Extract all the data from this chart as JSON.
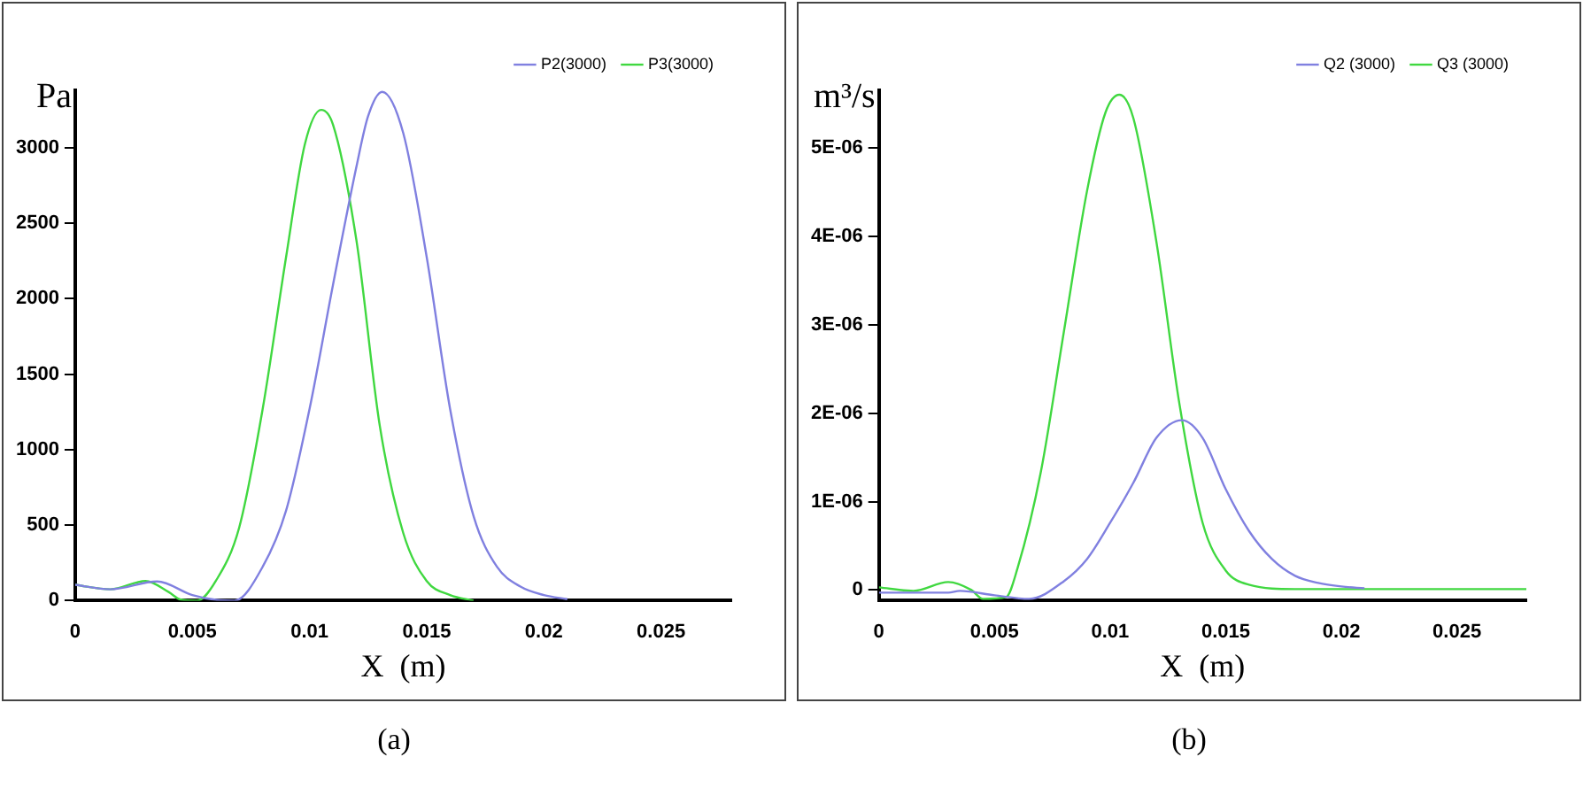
{
  "chart_data": [
    {
      "type": "line",
      "ylabel": "Pa",
      "xlabel": "X  (m)",
      "annotations": [
        "(a)"
      ],
      "legend": "top right",
      "marker": "none",
      "line_style": "solid",
      "grid": false,
      "xlim": [
        0,
        0.028
      ],
      "xticks": [
        0,
        0.005,
        0.01,
        0.015,
        0.02,
        0.025
      ],
      "ylim": [
        0,
        3380
      ],
      "yticks": [
        0,
        500,
        1000,
        1500,
        2000,
        2500,
        3000
      ],
      "series": [
        {
          "name": "P2(3000)",
          "color": "#8080e0",
          "x": [
            0,
            0.0015,
            0.0035,
            0.005,
            0.006,
            0.0068,
            0.008,
            0.009,
            0.01,
            0.011,
            0.012,
            0.0125,
            0.0131,
            0.014,
            0.015,
            0.016,
            0.017,
            0.018,
            0.019,
            0.02,
            0.021
          ],
          "values": [
            105,
            75,
            127,
            37,
            5,
            0,
            224,
            597,
            1269,
            2090,
            2873,
            3209,
            3370,
            3097,
            2276,
            1269,
            560,
            224,
            93,
            37,
            10
          ]
        },
        {
          "name": "P3(3000)",
          "color": "#40d840",
          "x": [
            0,
            0.0015,
            0.003,
            0.004,
            0.0045,
            0.0052,
            0.006,
            0.007,
            0.008,
            0.009,
            0.0098,
            0.0105,
            0.011,
            0.012,
            0.013,
            0.014,
            0.015,
            0.016,
            0.017
          ],
          "values": [
            105,
            75,
            130,
            56,
            7,
            0,
            130,
            485,
            1269,
            2276,
            3022,
            3250,
            3153,
            2388,
            1157,
            448,
            130,
            37,
            0
          ]
        }
      ]
    },
    {
      "type": "line",
      "ylabel": "m³/s",
      "xlabel": "X  (m)",
      "annotations": [
        "(b)"
      ],
      "legend": "top right",
      "marker": "none",
      "line_style": "solid",
      "grid": false,
      "xlim": [
        0,
        0.028
      ],
      "xticks": [
        0,
        0.005,
        0.01,
        0.015,
        0.02,
        0.025
      ],
      "ylim": [
        -1.2e-07,
        5.65e-06
      ],
      "yticks": [
        0,
        {
          "value": 1e-06,
          "label": "1E-06"
        },
        {
          "value": 2e-06,
          "label": "2E-06"
        },
        {
          "value": 3e-06,
          "label": "3E-06"
        },
        {
          "value": 4e-06,
          "label": "4E-06"
        },
        {
          "value": 5e-06,
          "label": "5E-06"
        }
      ],
      "series": [
        {
          "name": "Q2 (3000)",
          "color": "#8080e0",
          "x": [
            0,
            0.003,
            0.0035,
            0.005,
            0.0065,
            0.008,
            0.009,
            0.01,
            0.011,
            0.012,
            0.0131,
            0.014,
            0.015,
            0.016,
            0.017,
            0.018,
            0.019,
            0.02,
            0.021
          ],
          "values": [
            -3e-08,
            -3e-08,
            -1e-08,
            -6e-08,
            -1e-07,
            1e-07,
            3.5e-07,
            7.6e-07,
            1.21e-06,
            1.72e-06,
            1.92e-06,
            1.72e-06,
            1.14e-06,
            6.7e-07,
            3.5e-07,
            1.6e-07,
            8e-08,
            4e-08,
            2e-08
          ]
        },
        {
          "name": "Q3 (3000)",
          "color": "#40d840",
          "x": [
            0,
            0.0015,
            0.003,
            0.004,
            0.0045,
            0.0055,
            0.006,
            0.007,
            0.008,
            0.009,
            0.0098,
            0.0104,
            0.011,
            0.012,
            0.013,
            0.014,
            0.015,
            0.016,
            0.018,
            0.028
          ],
          "values": [
            3e-08,
            -1e-08,
            9e-08,
            0,
            -1e-07,
            -8e-08,
            2.5e-07,
            1.33e-06,
            2.92e-06,
            4.51e-06,
            5.4e-06,
            5.6e-06,
            5.34e-06,
            3.94e-06,
            2.1e-06,
            7.6e-07,
            2.2e-07,
            6e-08,
            1e-08,
            1e-08
          ]
        }
      ]
    }
  ]
}
